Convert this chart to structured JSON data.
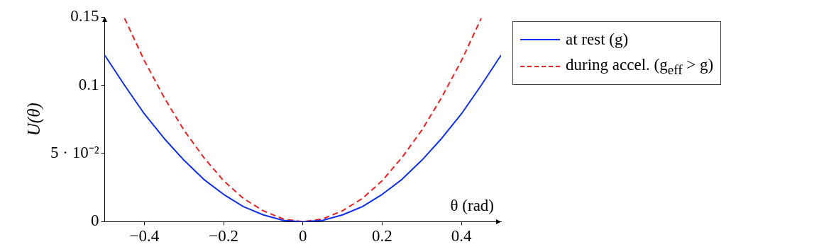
{
  "chart_data": {
    "type": "line",
    "xlabel": "θ (rad)",
    "ylabel": "U(θ)",
    "xlim": [
      -0.5,
      0.5
    ],
    "xticks": [
      -0.4,
      -0.2,
      0,
      0.2,
      0.4
    ],
    "ylim": [
      0,
      0.15
    ],
    "yticks": [
      0,
      {
        "value": 0.05,
        "label": "5 · 10⁻²"
      },
      0.1,
      0.15
    ],
    "grid": false,
    "legend": "right",
    "marker": "none",
    "series": [
      {
        "name": "at rest (g)",
        "color": "#1030f0",
        "line_style": "solid",
        "x": [
          -0.5,
          -0.45,
          -0.4,
          -0.35,
          -0.3,
          -0.25,
          -0.2,
          -0.15,
          -0.1,
          -0.05,
          0,
          0.05,
          0.1,
          0.15,
          0.2,
          0.25,
          0.3,
          0.35,
          0.4,
          0.45,
          0.5
        ],
        "values": [
          0.122,
          0.1,
          0.079,
          0.061,
          0.045,
          0.031,
          0.02,
          0.011,
          0.005,
          0.001,
          0,
          0.001,
          0.005,
          0.011,
          0.02,
          0.031,
          0.045,
          0.061,
          0.079,
          0.1,
          0.122
        ]
      },
      {
        "name": "during accel. (g$_{eff}$ > g)",
        "color": "#f02020",
        "line_style": "dashed",
        "x": [
          -0.45,
          -0.4,
          -0.35,
          -0.3,
          -0.25,
          -0.2,
          -0.15,
          -0.1,
          -0.05,
          0,
          0.05,
          0.1,
          0.15,
          0.2,
          0.25,
          0.3,
          0.35,
          0.4,
          0.45
        ],
        "values": [
          0.149,
          0.118,
          0.091,
          0.067,
          0.047,
          0.03,
          0.017,
          0.008,
          0.002,
          0,
          0.002,
          0.008,
          0.017,
          0.03,
          0.047,
          0.067,
          0.091,
          0.118,
          0.149
        ]
      }
    ]
  }
}
